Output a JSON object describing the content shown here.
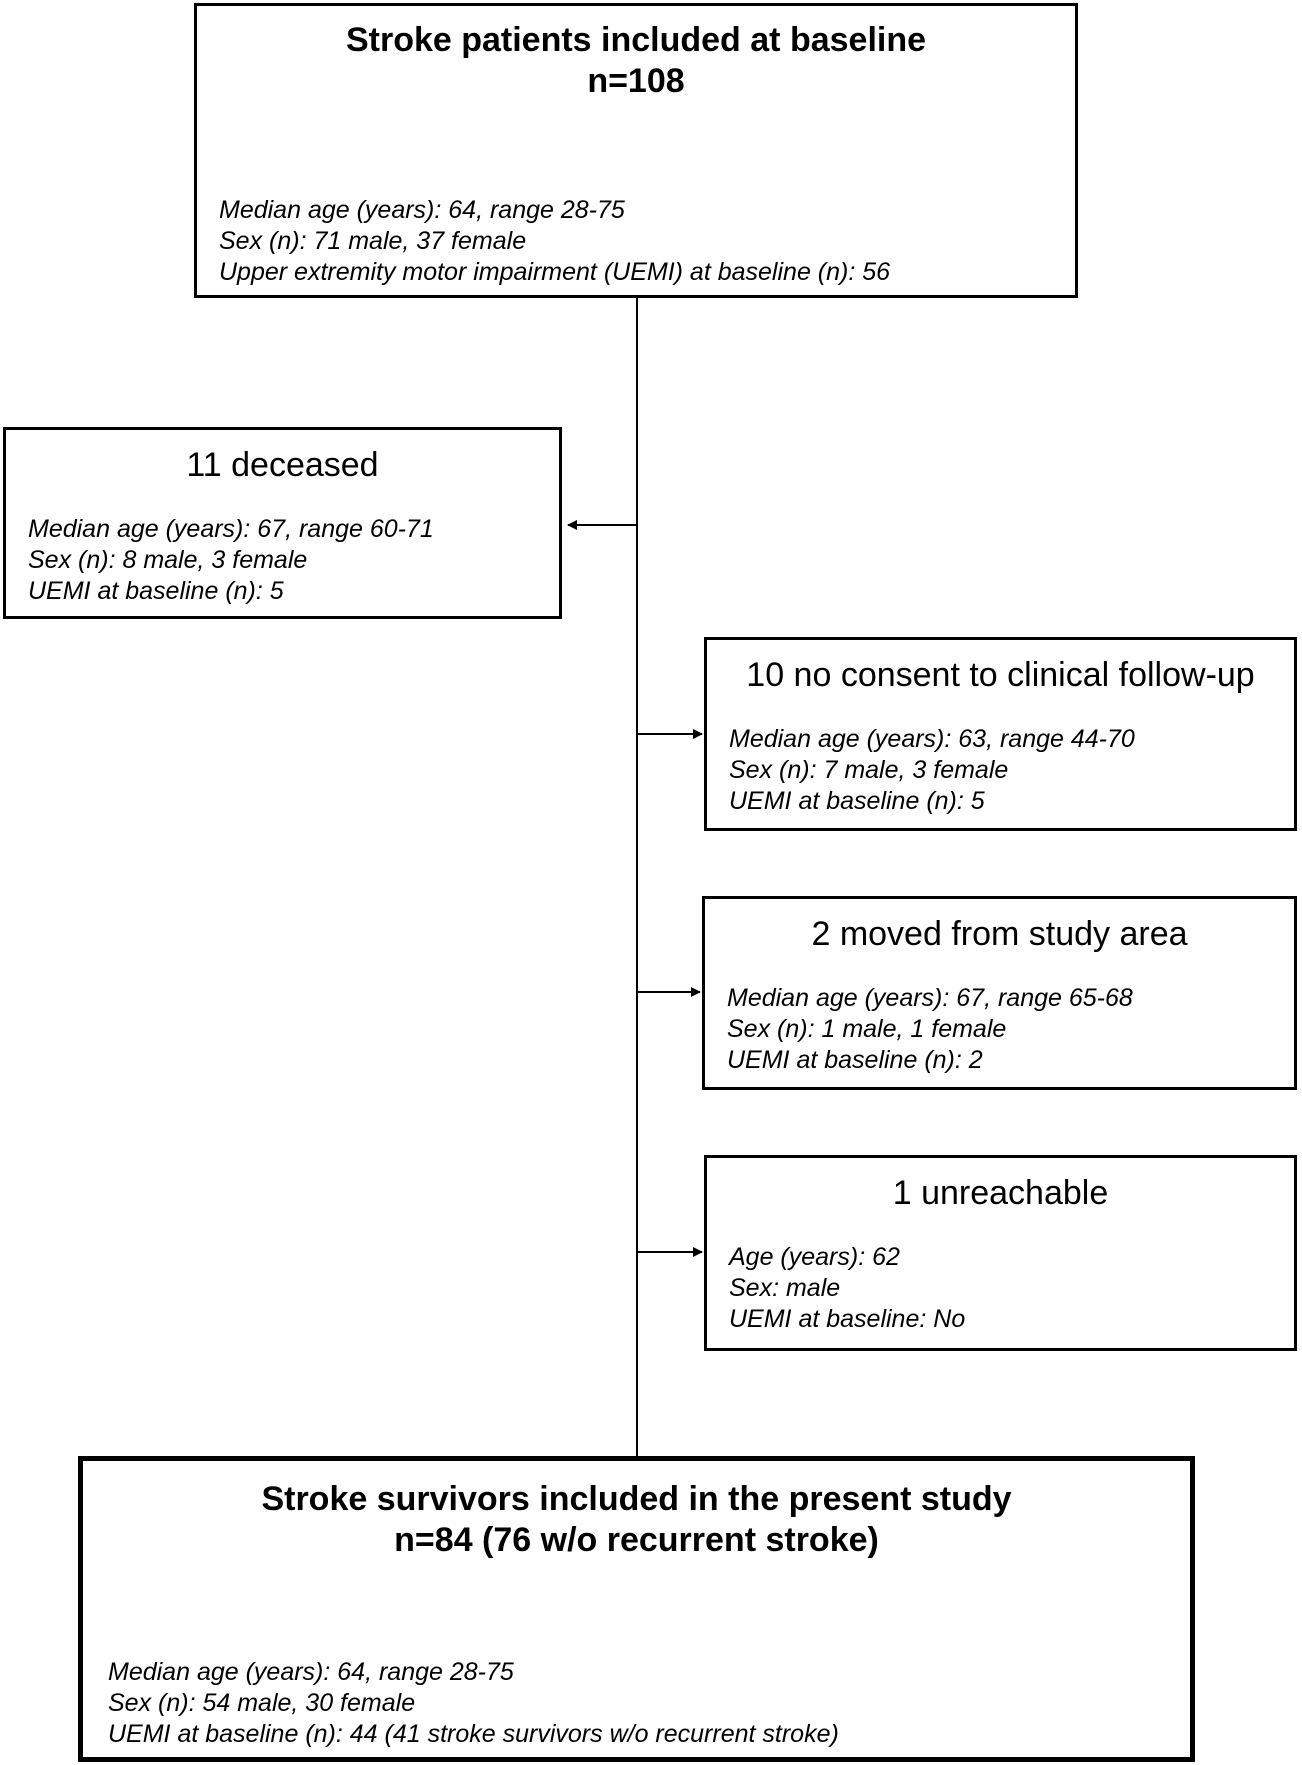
{
  "baseline": {
    "title": "Stroke patients included at baseline",
    "n": "n=108",
    "details": [
      "Median age (years): 64, range 28-75",
      "Sex (n): 71 male, 37 female",
      "Upper extremity motor impairment (UEMI) at baseline (n): 56"
    ]
  },
  "deceased": {
    "title": "11 deceased",
    "details": [
      "Median age (years): 67, range 60-71",
      "Sex (n): 8 male, 3 female",
      "UEMI at baseline (n): 5"
    ]
  },
  "no_consent": {
    "title": "10 no consent to clinical follow-up",
    "details": [
      "Median age (years): 63, range 44-70",
      "Sex (n): 7 male, 3 female",
      "UEMI at baseline (n): 5"
    ]
  },
  "moved": {
    "title": "2 moved from study area",
    "details": [
      "Median age (years): 67, range 65-68",
      "Sex (n): 1 male, 1 female",
      "UEMI at baseline (n): 2"
    ]
  },
  "unreachable": {
    "title": "1 unreachable",
    "details": [
      "Age (years): 62",
      "Sex: male",
      "UEMI at baseline: No"
    ]
  },
  "survivors": {
    "title": "Stroke survivors included in the present study",
    "n": "n=84 (76 w/o recurrent stroke)",
    "details": [
      "Median age (years): 64, range 28-75",
      "Sex (n): 54 male, 30 female",
      "UEMI at baseline (n): 44 (41 stroke survivors w/o recurrent stroke)"
    ]
  }
}
